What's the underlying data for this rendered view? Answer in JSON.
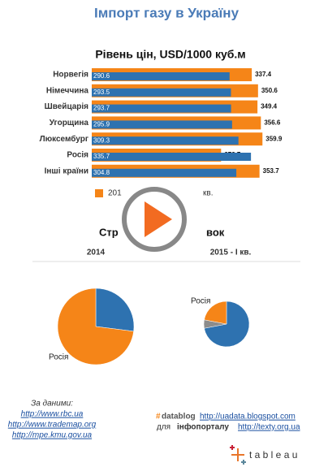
{
  "title": "Імпорт газу в Україну",
  "section_title_parts": [
    "Стр",
    "вок"
  ],
  "chart_data": [
    {
      "type": "bar",
      "orientation": "horizontal",
      "title": "Рівень цін, USD/1000 куб.м",
      "categories": [
        "Норвегія",
        "Німеччина",
        "Швейцарія",
        "Угорщина",
        "Люксембург",
        "Росія",
        "Інші країни"
      ],
      "xlim": [
        0,
        380
      ],
      "series": [
        {
          "name": "201",
          "color": "#f58518",
          "values": [
            337.4,
            350.6,
            349.4,
            356.6,
            359.9,
            272.7,
            353.7
          ]
        },
        {
          "name": "кв.",
          "color": "#2e72b0",
          "values": [
            290.6,
            293.5,
            293.7,
            295.9,
            309.3,
            335.7,
            304.8
          ]
        }
      ]
    },
    {
      "type": "pie",
      "subtitle": "2014",
      "categories": [
        null,
        "Росія"
      ],
      "values": [
        27,
        73
      ],
      "colors": [
        "#2e72b0",
        "#f58518"
      ]
    },
    {
      "type": "pie",
      "subtitle": "2015 - І кв.",
      "categories": [
        null,
        null,
        "Росія"
      ],
      "values": [
        72,
        6,
        22
      ],
      "colors": [
        "#2e72b0",
        "#8c8c8c",
        "#f58518"
      ]
    }
  ],
  "footer": {
    "source_label": "За даними:",
    "sources": [
      "http://www.rbc.ua",
      "http://www.trademap.org",
      "http://mpe.kmu.gov.ua"
    ],
    "hash": "#",
    "datablog": "datablog",
    "datablog_url": "http://uadata.blogspot.com",
    "for": "для",
    "portal": "інфопорталу",
    "portal_url": "http://texty.org.ua",
    "logo": "t a b l e a u"
  }
}
